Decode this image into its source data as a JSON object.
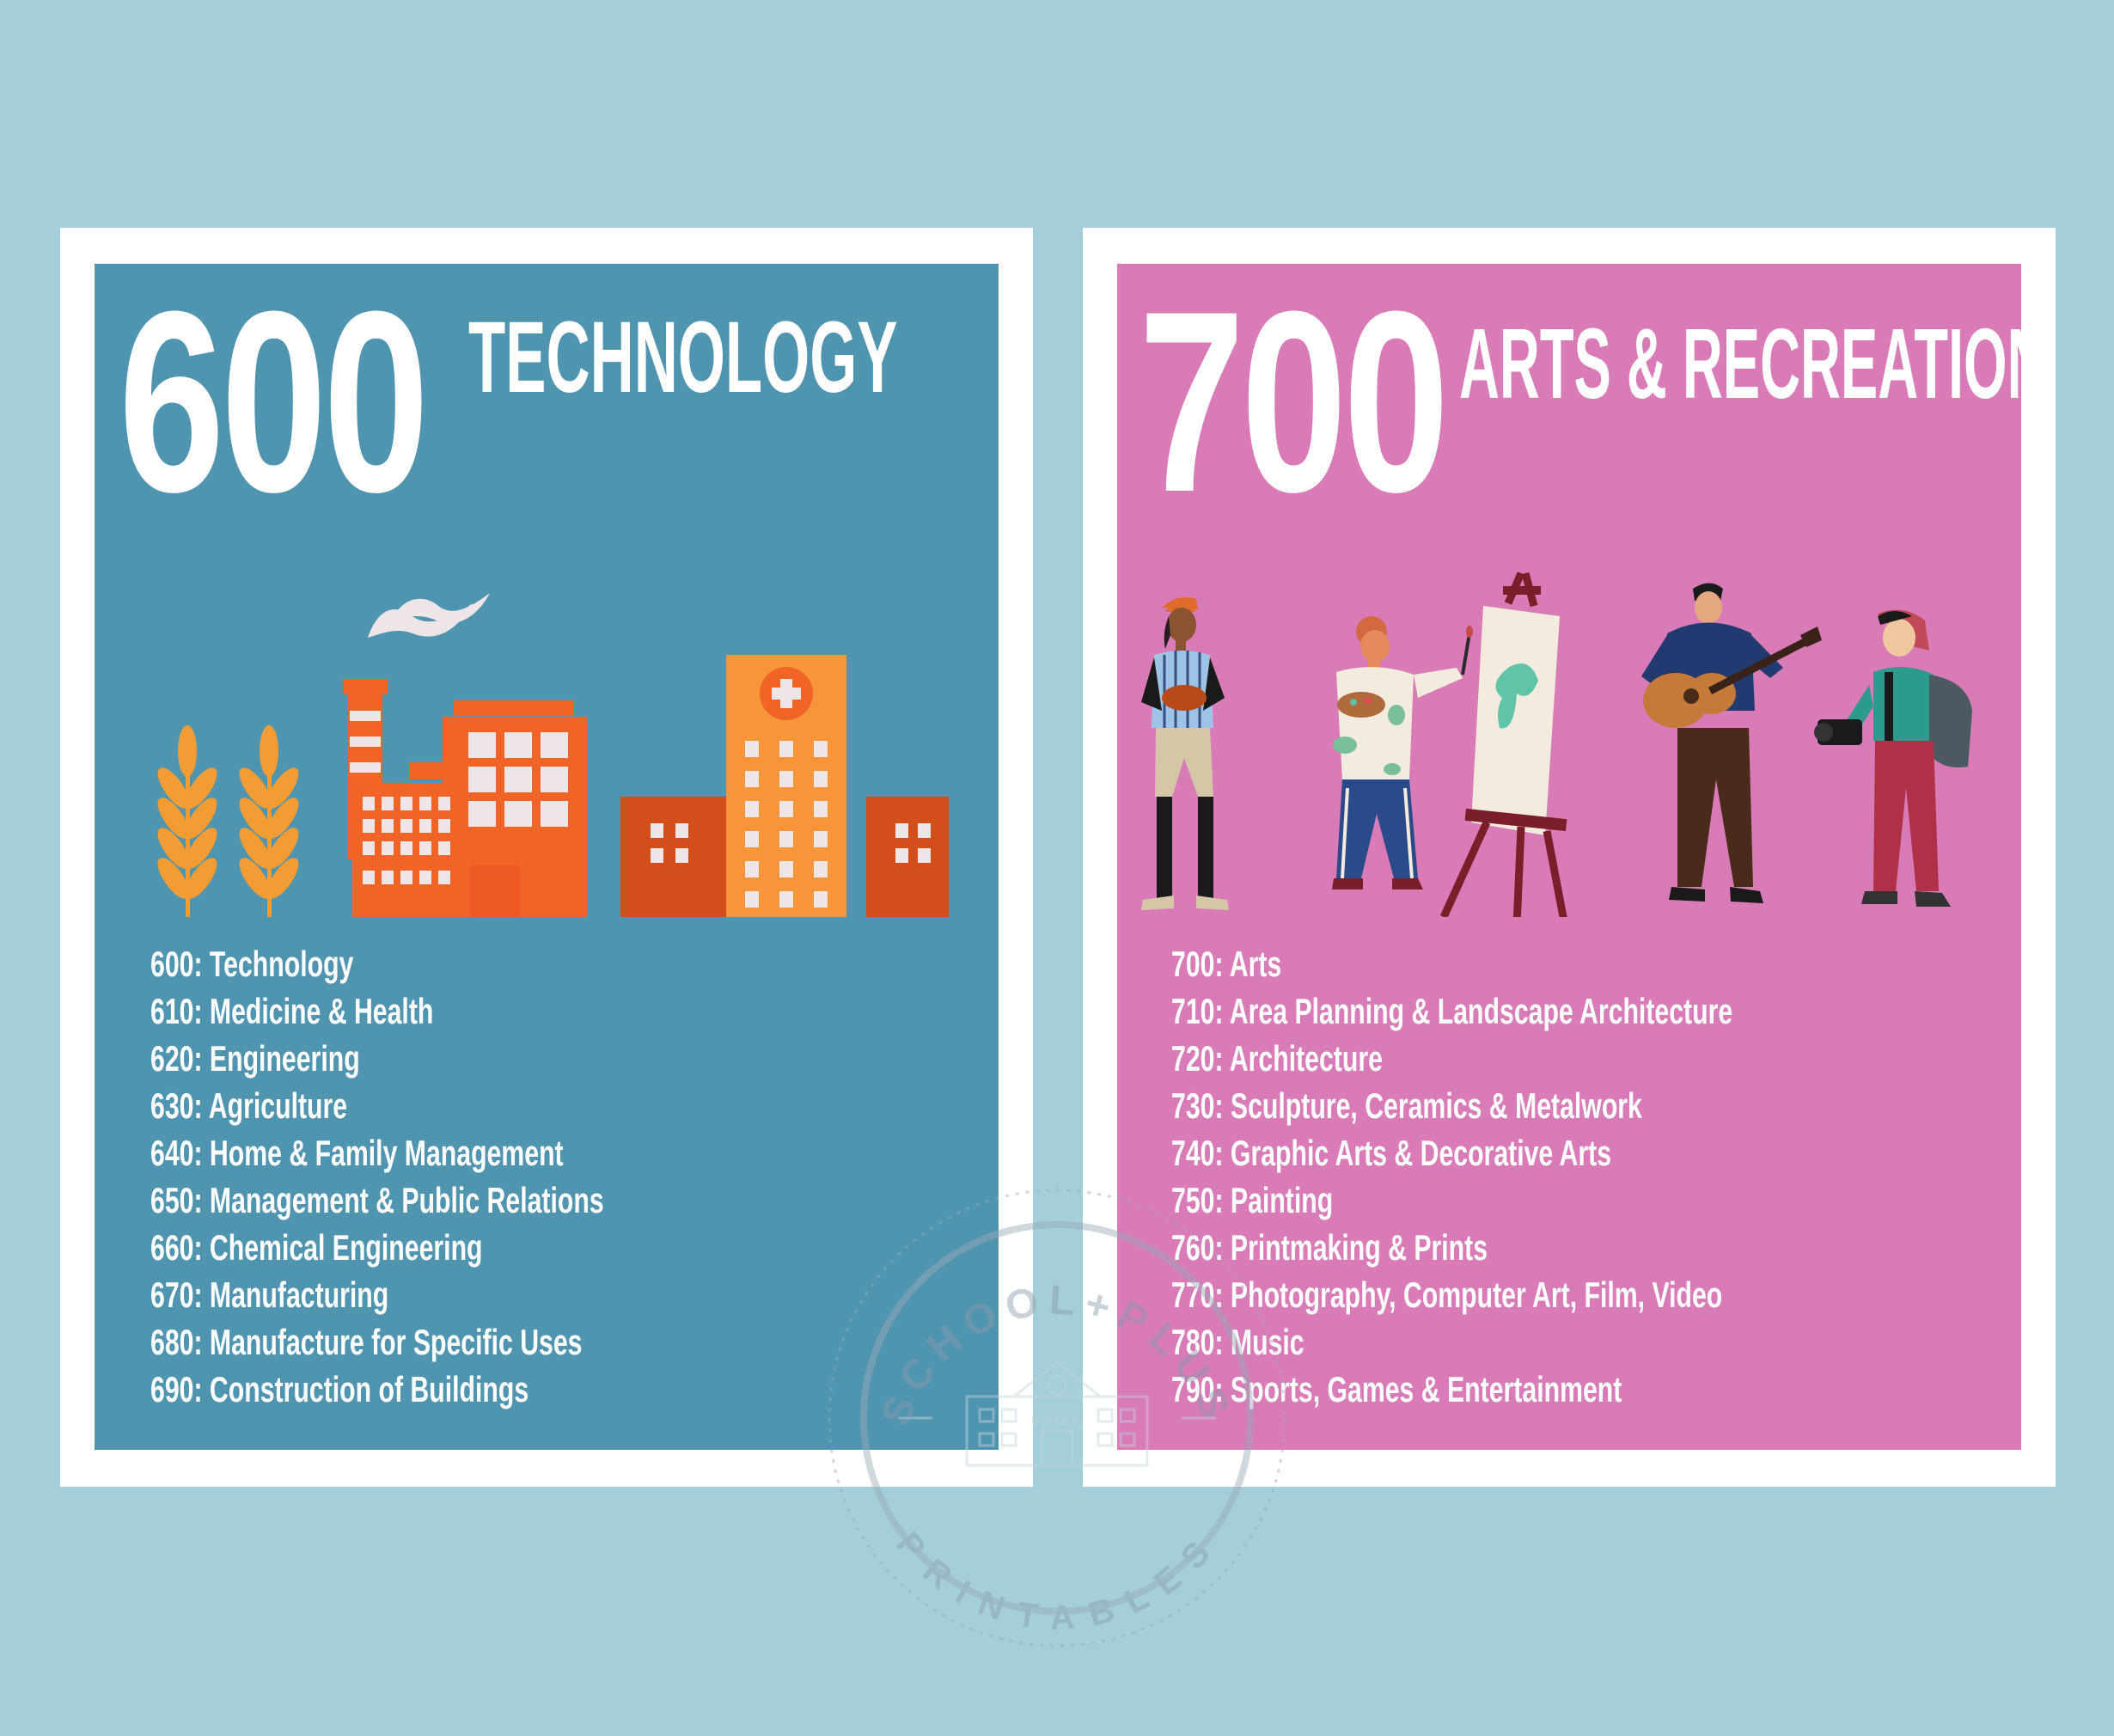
{
  "posters": [
    {
      "number": "600",
      "title": "TECHNOLOGY",
      "colors": {
        "background": "#5095b0",
        "orange": "#f06428",
        "light_orange": "#f6953a",
        "dark_orange": "#d24e1a",
        "wheat": "#f39c34"
      },
      "icons": [
        "wheat-icon",
        "factory-icon",
        "hospital-icon"
      ],
      "classes": [
        "600: Technology",
        "610: Medicine & Health",
        "620: Engineering",
        "630: Agriculture",
        "640: Home & Family Management",
        "650: Management & Public Relations",
        "660: Chemical Engineering",
        "670: Manufacturing",
        "680: Manufacture for Specific Uses",
        "690: Construction of Buildings"
      ]
    },
    {
      "number": "700",
      "title": "ARTS & RECREATION",
      "colors": {
        "background": "#d87bb7"
      },
      "icons": [
        "baseball-player-icon",
        "painter-icon",
        "easel-icon",
        "guitarist-icon",
        "photographer-icon"
      ],
      "classes": [
        "700: Arts",
        "710: Area Planning & Landscape Architecture",
        "720: Architecture",
        "730: Sculpture, Ceramics & Metalwork",
        "740: Graphic Arts & Decorative Arts",
        "750: Painting",
        "760: Printmaking & Prints",
        "770: Photography, Computer Art, Film, Video",
        "780: Music",
        "790: Sports, Games & Entertainment"
      ]
    }
  ],
  "watermark": {
    "top_text": "SCHOOL+PLUS",
    "bottom_text": "PRINTABLES",
    "building_text": "SCHOOL"
  },
  "page_colors": {
    "background": "#a4ced8",
    "frame": "#ffffff"
  }
}
